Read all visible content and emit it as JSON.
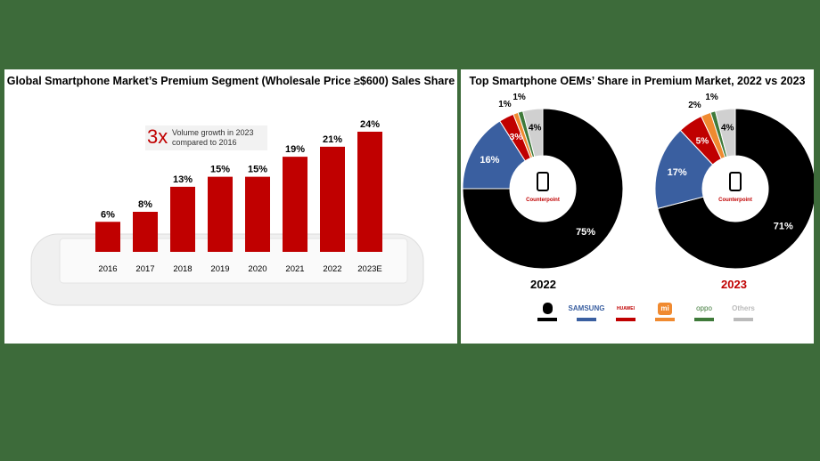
{
  "chart_data": [
    {
      "type": "bar",
      "title": "Global Smartphone Market’s Premium Segment (Wholesale Price ≥$600) Sales Share",
      "categories": [
        "2016",
        "2017",
        "2018",
        "2019",
        "2020",
        "2021",
        "2022",
        "2023E"
      ],
      "values": [
        6,
        8,
        13,
        15,
        15,
        19,
        21,
        24
      ],
      "labels": [
        "6%",
        "8%",
        "13%",
        "15%",
        "15%",
        "19%",
        "21%",
        "24%"
      ],
      "color": "#c00000",
      "ylim": [
        0,
        26
      ],
      "annotation": {
        "big": "3x",
        "text": "Volume growth in 2023 compared to 2016"
      }
    },
    {
      "type": "pie",
      "title": "Top Smartphone OEMs’ Share in Premium Market, 2022 vs 2023",
      "brands": [
        "Apple",
        "SAMSUNG",
        "HUAWEI",
        "Xiaomi",
        "OPPO",
        "Others"
      ],
      "colors": [
        "#000000",
        "#3a5fa0",
        "#c00000",
        "#f08a30",
        "#3f7a3a",
        "#d0d0d0"
      ],
      "series": [
        {
          "name": "2022",
          "values": [
            75,
            16,
            3,
            1,
            1,
            4
          ],
          "labels": [
            "75%",
            "16%",
            "3%",
            "1%",
            "1%",
            "4%"
          ]
        },
        {
          "name": "2023",
          "values": [
            71,
            17,
            5,
            2,
            1,
            4
          ],
          "labels": [
            "71%",
            "17%",
            "5%",
            "2%",
            "1%",
            "4%"
          ]
        }
      ]
    }
  ],
  "watermark": "Counterpoint",
  "legend": [
    {
      "label": "",
      "icon": "apple-logo"
    },
    {
      "label": "SAMSUNG"
    },
    {
      "label": "HUAWEI",
      "icon": "huawei-logo"
    },
    {
      "label": "mi",
      "icon": "xiaomi-logo"
    },
    {
      "label": "oppo"
    },
    {
      "label": "Others"
    }
  ]
}
